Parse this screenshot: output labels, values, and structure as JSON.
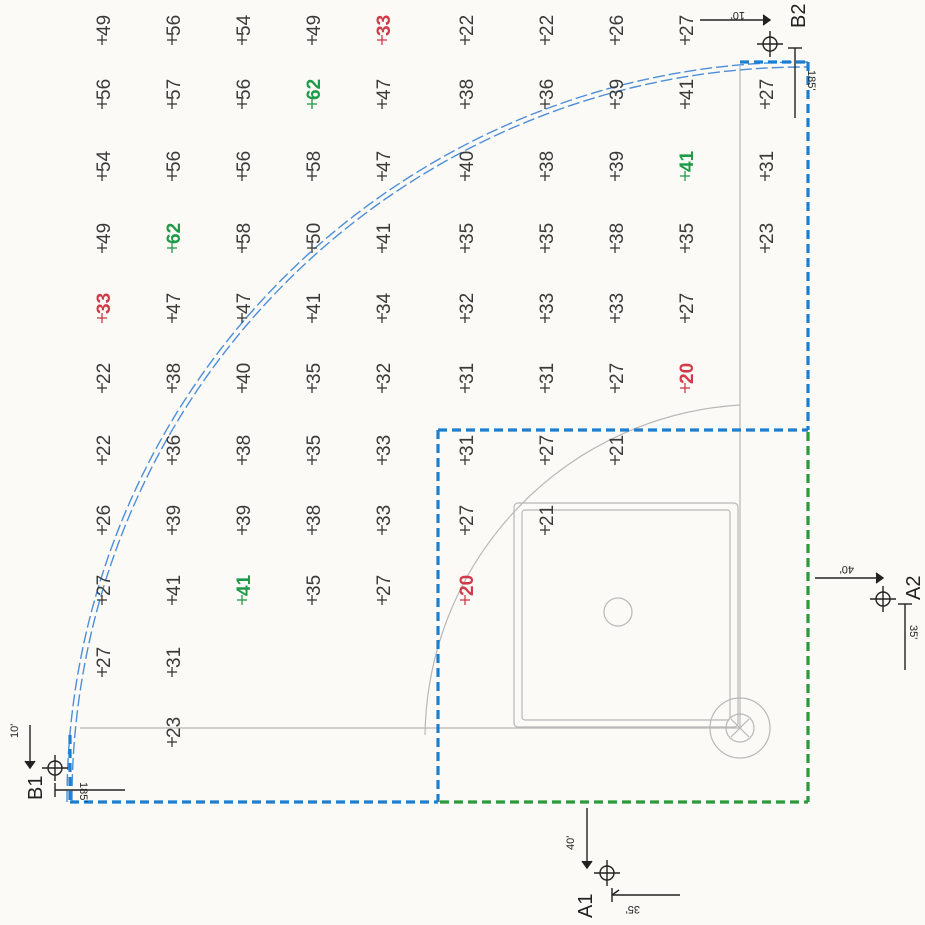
{
  "colors": {
    "normal": "#3a3a3a",
    "low": "#d13a48",
    "high": "#1f9a48",
    "outfield_boundary": "#1b7fd1",
    "infield_boundary": "#2a9a3a",
    "fence_arc": "#4d8ed8",
    "field_lines": "#b8b8b8",
    "markers": "#222222"
  },
  "markers": {
    "A1": {
      "label": "A1",
      "dim_a": "40'",
      "dim_b": "35'"
    },
    "A2": {
      "label": "A2",
      "dim_a": "40'",
      "dim_b": "35'"
    },
    "B1": {
      "label": "B1",
      "dim_a": "10'",
      "dim_b": "185'"
    },
    "B2": {
      "label": "B2",
      "dim_a": "10'",
      "dim_b": "185'"
    }
  },
  "grid": {
    "rows": [
      {
        "cells": [
          {
            "col": 1,
            "v": "23",
            "s": "normal"
          }
        ]
      },
      {
        "cells": [
          {
            "col": 0,
            "v": "27",
            "s": "normal"
          },
          {
            "col": 1,
            "v": "31",
            "s": "normal"
          }
        ]
      },
      {
        "cells": [
          {
            "col": 0,
            "v": "27",
            "s": "normal"
          },
          {
            "col": 1,
            "v": "41",
            "s": "normal"
          },
          {
            "col": 2,
            "v": "41",
            "s": "high"
          },
          {
            "col": 3,
            "v": "35",
            "s": "normal"
          },
          {
            "col": 4,
            "v": "27",
            "s": "normal"
          },
          {
            "col": 5,
            "v": "20",
            "s": "low"
          }
        ]
      },
      {
        "cells": [
          {
            "col": 0,
            "v": "26",
            "s": "normal"
          },
          {
            "col": 1,
            "v": "39",
            "s": "normal"
          },
          {
            "col": 2,
            "v": "39",
            "s": "normal"
          },
          {
            "col": 3,
            "v": "38",
            "s": "normal"
          },
          {
            "col": 4,
            "v": "33",
            "s": "normal"
          },
          {
            "col": 5,
            "v": "27",
            "s": "normal"
          },
          {
            "col": 6,
            "v": "21",
            "s": "normal"
          }
        ]
      },
      {
        "cells": [
          {
            "col": 0,
            "v": "22",
            "s": "normal"
          },
          {
            "col": 1,
            "v": "36",
            "s": "normal"
          },
          {
            "col": 2,
            "v": "38",
            "s": "normal"
          },
          {
            "col": 3,
            "v": "35",
            "s": "normal"
          },
          {
            "col": 4,
            "v": "33",
            "s": "normal"
          },
          {
            "col": 5,
            "v": "31",
            "s": "normal"
          },
          {
            "col": 6,
            "v": "27",
            "s": "normal"
          },
          {
            "col": 7,
            "v": "21",
            "s": "normal"
          }
        ]
      },
      {
        "cells": [
          {
            "col": 0,
            "v": "22",
            "s": "normal"
          },
          {
            "col": 1,
            "v": "38",
            "s": "normal"
          },
          {
            "col": 2,
            "v": "40",
            "s": "normal"
          },
          {
            "col": 3,
            "v": "35",
            "s": "normal"
          },
          {
            "col": 4,
            "v": "32",
            "s": "normal"
          },
          {
            "col": 5,
            "v": "31",
            "s": "normal"
          },
          {
            "col": 6,
            "v": "31",
            "s": "normal"
          },
          {
            "col": 7,
            "v": "27",
            "s": "normal"
          },
          {
            "col": 8,
            "v": "20",
            "s": "low"
          }
        ]
      },
      {
        "cells": [
          {
            "col": 0,
            "v": "33",
            "s": "low"
          },
          {
            "col": 1,
            "v": "47",
            "s": "normal"
          },
          {
            "col": 2,
            "v": "47",
            "s": "normal"
          },
          {
            "col": 3,
            "v": "41",
            "s": "normal"
          },
          {
            "col": 4,
            "v": "34",
            "s": "normal"
          },
          {
            "col": 5,
            "v": "32",
            "s": "normal"
          },
          {
            "col": 6,
            "v": "33",
            "s": "normal"
          },
          {
            "col": 7,
            "v": "33",
            "s": "normal"
          },
          {
            "col": 8,
            "v": "27",
            "s": "normal"
          }
        ]
      },
      {
        "cells": [
          {
            "col": 0,
            "v": "49",
            "s": "normal"
          },
          {
            "col": 1,
            "v": "62",
            "s": "high"
          },
          {
            "col": 2,
            "v": "58",
            "s": "normal"
          },
          {
            "col": 3,
            "v": "50",
            "s": "normal"
          },
          {
            "col": 4,
            "v": "41",
            "s": "normal"
          },
          {
            "col": 5,
            "v": "35",
            "s": "normal"
          },
          {
            "col": 6,
            "v": "35",
            "s": "normal"
          },
          {
            "col": 7,
            "v": "38",
            "s": "normal"
          },
          {
            "col": 8,
            "v": "35",
            "s": "normal"
          },
          {
            "col": 9,
            "v": "23",
            "s": "normal"
          }
        ]
      },
      {
        "cells": [
          {
            "col": 0,
            "v": "54",
            "s": "normal"
          },
          {
            "col": 1,
            "v": "56",
            "s": "normal"
          },
          {
            "col": 2,
            "v": "56",
            "s": "normal"
          },
          {
            "col": 3,
            "v": "58",
            "s": "normal"
          },
          {
            "col": 4,
            "v": "47",
            "s": "normal"
          },
          {
            "col": 5,
            "v": "40",
            "s": "normal"
          },
          {
            "col": 6,
            "v": "38",
            "s": "normal"
          },
          {
            "col": 7,
            "v": "39",
            "s": "normal"
          },
          {
            "col": 8,
            "v": "41",
            "s": "high"
          },
          {
            "col": 9,
            "v": "31",
            "s": "normal"
          }
        ]
      },
      {
        "cells": [
          {
            "col": 0,
            "v": "56",
            "s": "normal"
          },
          {
            "col": 1,
            "v": "57",
            "s": "normal"
          },
          {
            "col": 2,
            "v": "56",
            "s": "normal"
          },
          {
            "col": 3,
            "v": "62",
            "s": "high"
          },
          {
            "col": 4,
            "v": "47",
            "s": "normal"
          },
          {
            "col": 5,
            "v": "38",
            "s": "normal"
          },
          {
            "col": 6,
            "v": "36",
            "s": "normal"
          },
          {
            "col": 7,
            "v": "39",
            "s": "normal"
          },
          {
            "col": 8,
            "v": "41",
            "s": "normal"
          },
          {
            "col": 9,
            "v": "27",
            "s": "normal"
          }
        ]
      },
      {
        "cells": [
          {
            "col": 0,
            "v": "49",
            "s": "normal"
          },
          {
            "col": 1,
            "v": "56",
            "s": "normal"
          },
          {
            "col": 2,
            "v": "54",
            "s": "normal"
          },
          {
            "col": 3,
            "v": "49",
            "s": "normal"
          },
          {
            "col": 4,
            "v": "33",
            "s": "low"
          },
          {
            "col": 5,
            "v": "22",
            "s": "normal"
          },
          {
            "col": 6,
            "v": "22",
            "s": "normal"
          },
          {
            "col": 7,
            "v": "26",
            "s": "normal"
          },
          {
            "col": 8,
            "v": "27",
            "s": "normal"
          }
        ]
      }
    ]
  }
}
